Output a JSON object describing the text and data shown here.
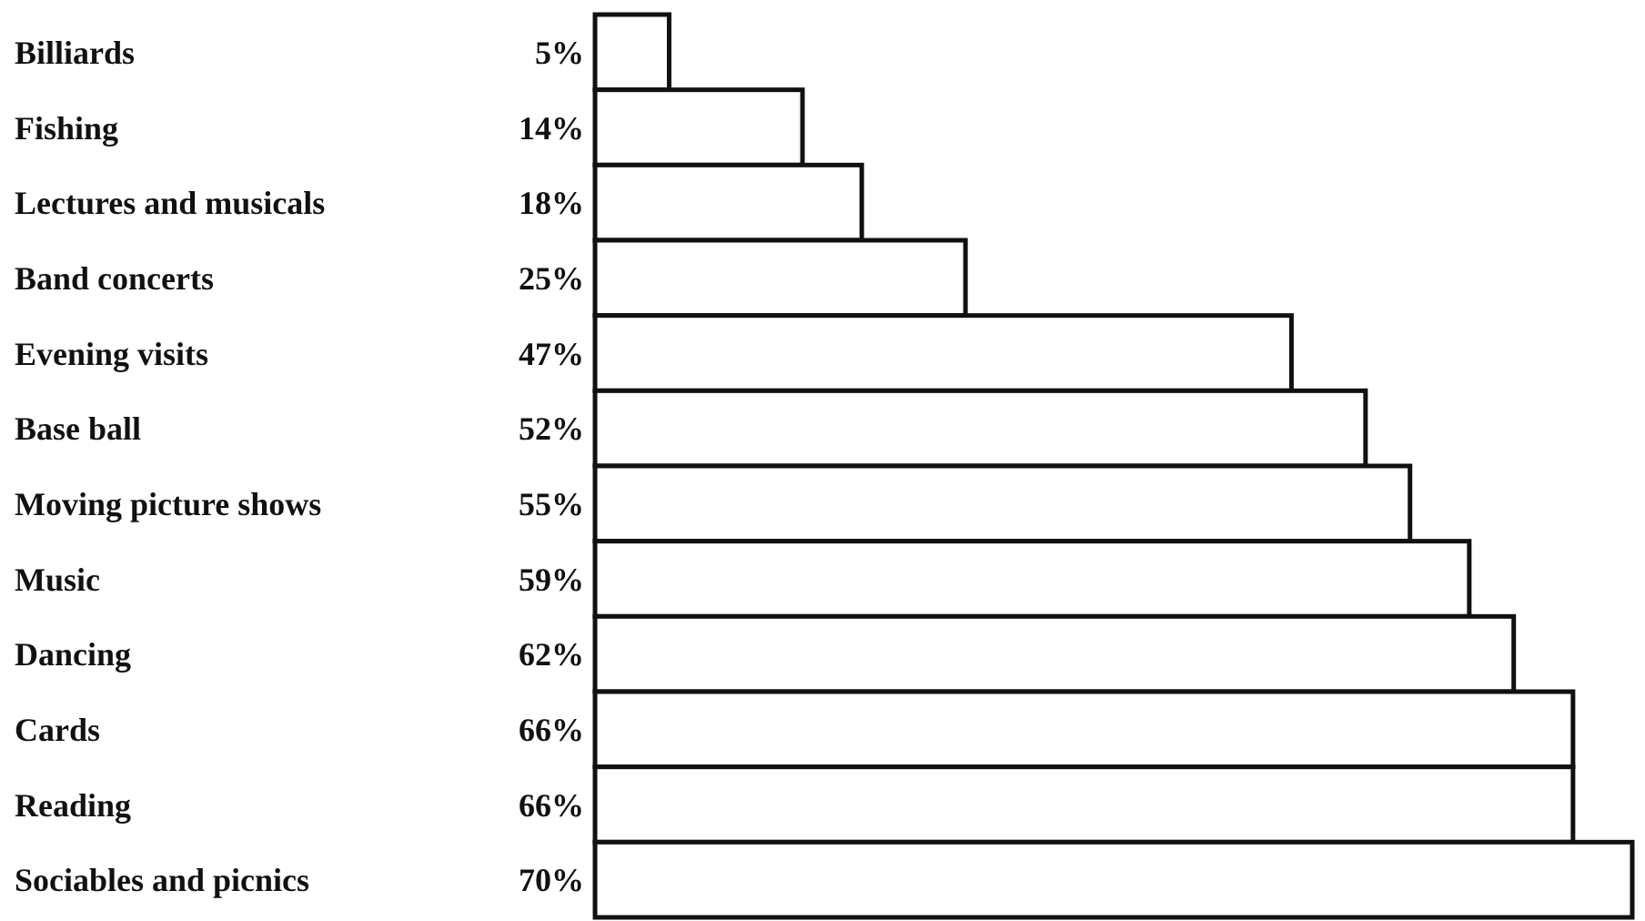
{
  "chart_data": {
    "type": "bar",
    "orientation": "horizontal",
    "categories": [
      "Billiards",
      "Fishing",
      "Lectures and musicals",
      "Band concerts",
      "Evening visits",
      "Base ball",
      "Moving picture shows",
      "Music",
      "Dancing",
      "Cards",
      "Reading",
      "Sociables and picnics"
    ],
    "values": [
      5,
      14,
      18,
      25,
      47,
      52,
      55,
      59,
      62,
      66,
      66,
      70
    ],
    "value_labels": [
      "5%",
      "14%",
      "18%",
      "25%",
      "47%",
      "52%",
      "55%",
      "59%",
      "62%",
      "66%",
      "66%",
      "70%"
    ],
    "color": "#ffffff"
  }
}
